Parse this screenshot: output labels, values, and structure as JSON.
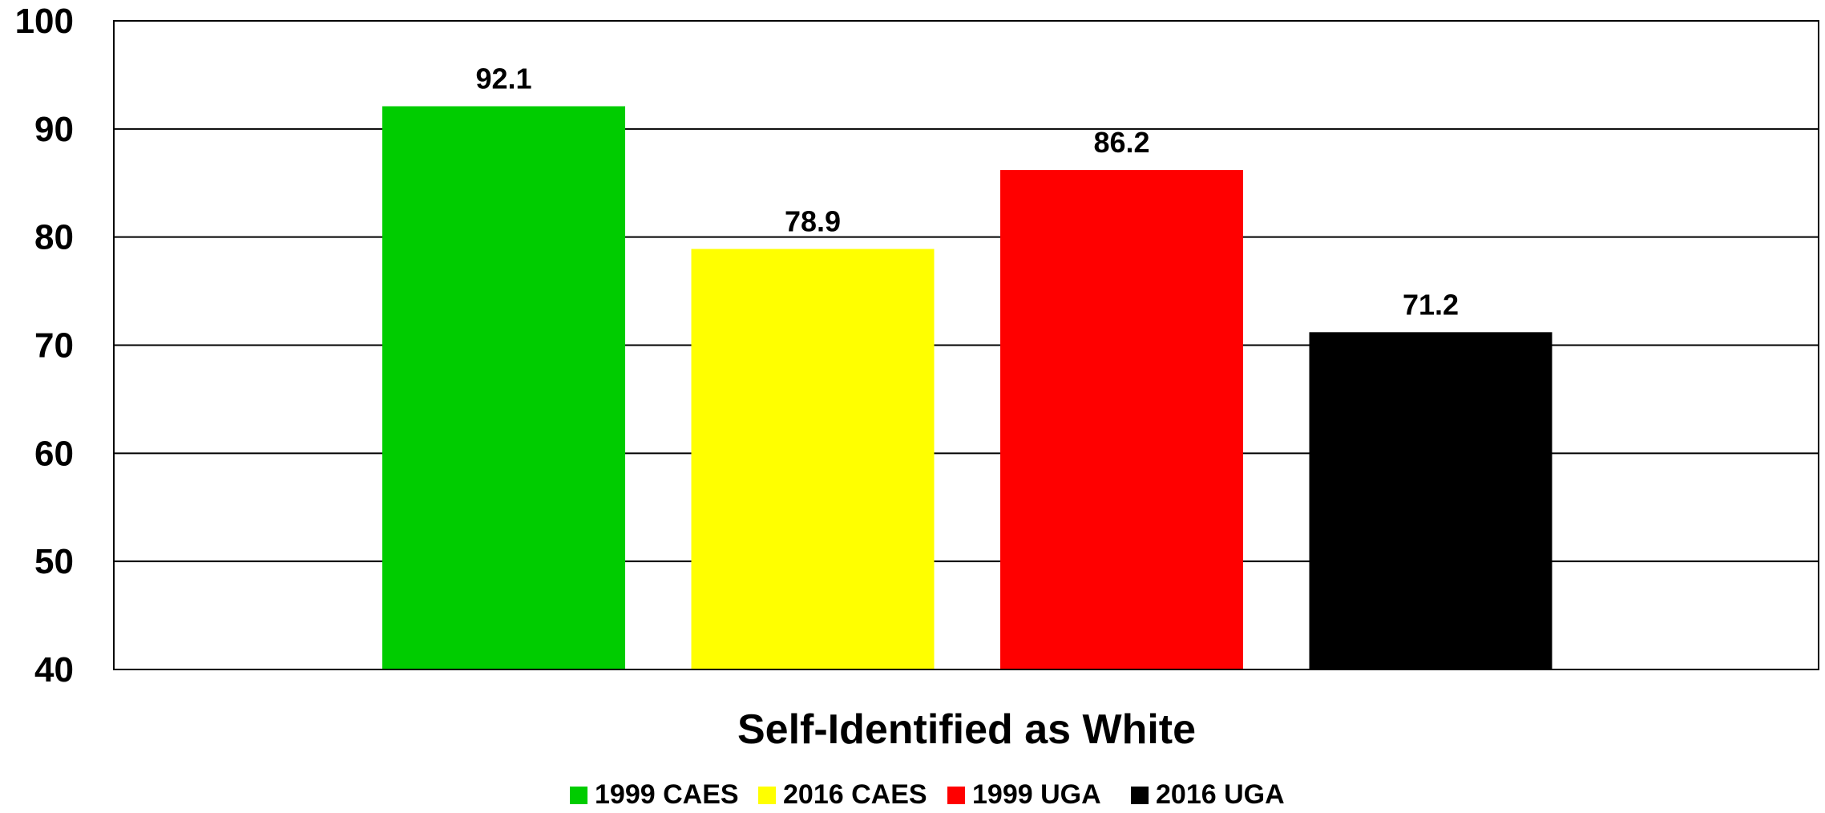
{
  "chart_data": {
    "type": "bar",
    "title": "",
    "xlabel": "Self-Identified as White",
    "ylabel": "",
    "ylim": [
      40,
      100
    ],
    "yticks": [
      40,
      50,
      60,
      70,
      80,
      90,
      100
    ],
    "grid": true,
    "legend_position": "bottom",
    "series": [
      {
        "name": "1999 CAES",
        "value": 92.1,
        "label": "92.1",
        "color": "#00cc00"
      },
      {
        "name": "2016 CAES",
        "value": 78.9,
        "label": "78.9",
        "color": "#ffff00"
      },
      {
        "name": "1999 UGA",
        "value": 86.2,
        "label": "86.2",
        "color": "#ff0000"
      },
      {
        "name": "2016 UGA",
        "value": 71.2,
        "label": "71.2",
        "color": "#000000"
      }
    ]
  }
}
